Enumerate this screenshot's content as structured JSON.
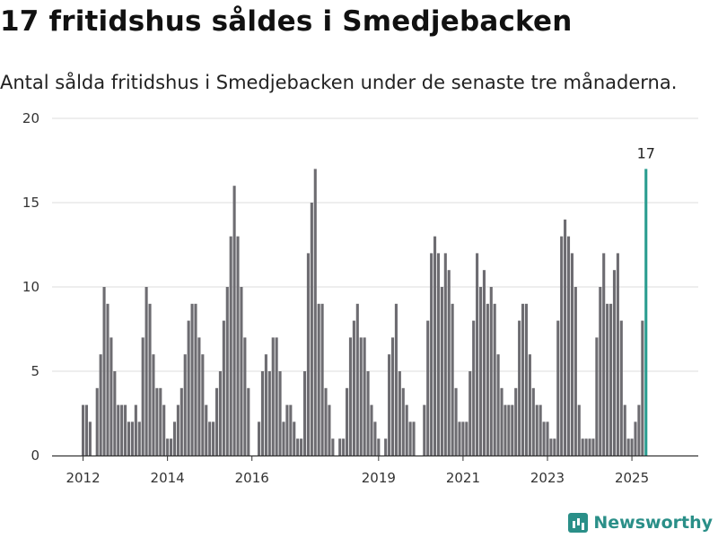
{
  "header": {
    "title": "17 fritidshus såldes i Smedjebacken",
    "subtitle": "Antal sålda fritidshus i Smedjebacken under de senaste tre månaderna."
  },
  "brand": {
    "name": "Newsworthy",
    "color": "#2a8f88"
  },
  "chart_data": {
    "type": "bar",
    "y_ticks": [
      0,
      5,
      10,
      15,
      20
    ],
    "ylim": [
      0,
      20
    ],
    "x_start": "2012-01",
    "x_ticks": [
      {
        "label": "2012",
        "date": "2012-01"
      },
      {
        "label": "2014",
        "date": "2014-01"
      },
      {
        "label": "2016",
        "date": "2016-01"
      },
      {
        "label": "2019",
        "date": "2019-01"
      },
      {
        "label": "2021",
        "date": "2021-01"
      },
      {
        "label": "2023",
        "date": "2023-01"
      },
      {
        "label": "2025",
        "date": "2025-01"
      }
    ],
    "bar_color": "#6d6c71",
    "highlight_color": "#2a9d90",
    "highlight_label": "17",
    "values": [
      3,
      3,
      2,
      0,
      4,
      6,
      10,
      9,
      7,
      5,
      3,
      3,
      3,
      2,
      2,
      3,
      2,
      7,
      10,
      9,
      6,
      4,
      4,
      3,
      1,
      1,
      2,
      3,
      4,
      6,
      8,
      9,
      9,
      7,
      6,
      3,
      2,
      2,
      4,
      5,
      8,
      10,
      13,
      16,
      13,
      10,
      7,
      4,
      0,
      0,
      2,
      5,
      6,
      5,
      7,
      7,
      5,
      2,
      3,
      3,
      2,
      1,
      1,
      5,
      12,
      15,
      17,
      9,
      9,
      4,
      3,
      1,
      0,
      1,
      1,
      4,
      7,
      8,
      9,
      7,
      7,
      5,
      3,
      2,
      1,
      0,
      1,
      6,
      7,
      9,
      5,
      4,
      3,
      2,
      2,
      0,
      0,
      3,
      8,
      12,
      13,
      12,
      10,
      12,
      11,
      9,
      4,
      2,
      2,
      2,
      5,
      8,
      12,
      10,
      11,
      9,
      10,
      9,
      6,
      4,
      3,
      3,
      3,
      4,
      8,
      9,
      9,
      6,
      4,
      3,
      3,
      2,
      2,
      1,
      1,
      8,
      13,
      14,
      13,
      12,
      10,
      3,
      1,
      1,
      1,
      1,
      7,
      10,
      12,
      9,
      9,
      11,
      12,
      8,
      3,
      1,
      1,
      2,
      3,
      8,
      17
    ]
  }
}
